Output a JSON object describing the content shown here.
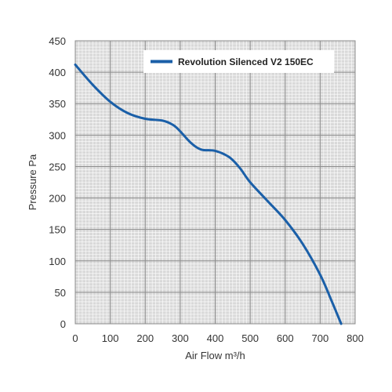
{
  "chart_data": {
    "type": "line",
    "title": "",
    "xlabel": "Air Flow m³/h",
    "ylabel": "Pressure Pa",
    "xlim": [
      0,
      800
    ],
    "ylim": [
      0,
      450
    ],
    "xticks": [
      0,
      100,
      200,
      300,
      400,
      500,
      600,
      700,
      800
    ],
    "yticks": [
      0,
      50,
      100,
      150,
      200,
      250,
      300,
      350,
      400,
      450
    ],
    "grid": true,
    "legend": "top-right",
    "series": [
      {
        "name": "Revolution Silenced V2 150EC",
        "color": "#1a5fa8",
        "x": [
          0,
          50,
          100,
          150,
          200,
          250,
          280,
          300,
          330,
          360,
          400,
          440,
          470,
          500,
          550,
          600,
          650,
          700,
          730,
          760
        ],
        "y": [
          412,
          380,
          353,
          335,
          326,
          323,
          316,
          306,
          288,
          277,
          275,
          265,
          248,
          225,
          195,
          165,
          127,
          78,
          40,
          0
        ]
      }
    ]
  },
  "colors": {
    "plot_background": "#d9d9d9",
    "grid_minor": "#ffffff",
    "grid_major": "#8c8c8c",
    "axis_text": "#333333"
  }
}
